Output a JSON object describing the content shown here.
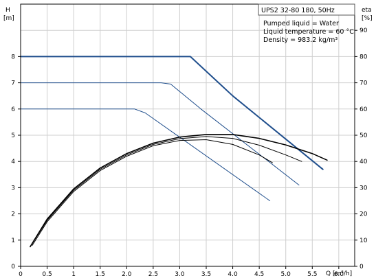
{
  "chart_data": {
    "type": "line",
    "title": "UPS2 32-80 180, 50Hz",
    "info_lines": [
      "Pumped liquid = Water",
      "Liquid temperature = 60 °C",
      "Density = 983.2 kg/m³"
    ],
    "x_axis": {
      "label": "Q [m³/h]",
      "range": [
        0,
        6.3
      ],
      "ticks": [
        {
          "value": 0,
          "label": "0"
        },
        {
          "value": 0.5,
          "label": "0.5"
        },
        {
          "value": 1.0,
          "label": "1"
        },
        {
          "value": 1.5,
          "label": "1.5"
        },
        {
          "value": 2.0,
          "label": "2.0"
        },
        {
          "value": 2.5,
          "label": "2.5"
        },
        {
          "value": 3.0,
          "label": "3.0"
        },
        {
          "value": 3.5,
          "label": "3.5"
        },
        {
          "value": 4.0,
          "label": "4.0"
        },
        {
          "value": 4.5,
          "label": "4.5"
        },
        {
          "value": 5.0,
          "label": "5.0"
        },
        {
          "value": 5.5,
          "label": "5.5"
        },
        {
          "value": 6.0,
          "label": "6.0"
        }
      ]
    },
    "y_left": {
      "label_top": "H",
      "label_unit": "[m]",
      "range": [
        0,
        10
      ],
      "ticks": [
        "0",
        "1",
        "2",
        "3",
        "4",
        "5",
        "6",
        "7",
        "8"
      ]
    },
    "y_right": {
      "label_top": "eta",
      "label_unit": "[%]",
      "range": [
        0,
        100
      ],
      "ticks": [
        "0",
        "10",
        "20",
        "30",
        "40",
        "50",
        "60",
        "70",
        "80",
        "90"
      ]
    },
    "grid": true,
    "series": [
      {
        "axis": "left",
        "color": "#1f4e8c",
        "width": 2,
        "points": [
          [
            0,
            8
          ],
          [
            3.2,
            8
          ],
          [
            4.0,
            6.5
          ],
          [
            5.7,
            3.7
          ]
        ]
      },
      {
        "axis": "left",
        "color": "#1f4e8c",
        "width": 1,
        "points": [
          [
            0,
            7
          ],
          [
            2.65,
            7
          ],
          [
            2.83,
            6.95
          ],
          [
            3.4,
            6.0
          ],
          [
            5.25,
            3.1
          ]
        ]
      },
      {
        "axis": "left",
        "color": "#1f4e8c",
        "width": 1,
        "points": [
          [
            0,
            6
          ],
          [
            2.15,
            6
          ],
          [
            2.35,
            5.85
          ],
          [
            4.7,
            2.5
          ]
        ]
      },
      {
        "axis": "right",
        "color": "#000000",
        "width": 1.6,
        "points": [
          [
            0.18,
            7.5
          ],
          [
            0.5,
            18
          ],
          [
            1.0,
            29.5
          ],
          [
            1.5,
            37.5
          ],
          [
            2.0,
            43
          ],
          [
            2.5,
            47
          ],
          [
            3.0,
            49.3
          ],
          [
            3.5,
            50.3
          ],
          [
            4.0,
            50.3
          ],
          [
            4.5,
            48.8
          ],
          [
            5.0,
            46.3
          ],
          [
            5.5,
            43
          ],
          [
            5.78,
            40.5
          ]
        ]
      },
      {
        "axis": "right",
        "color": "#000000",
        "width": 1,
        "points": [
          [
            0.2,
            8
          ],
          [
            0.5,
            17.5
          ],
          [
            1.0,
            29
          ],
          [
            1.5,
            37
          ],
          [
            2.0,
            42.5
          ],
          [
            2.5,
            46.5
          ],
          [
            3.0,
            48.7
          ],
          [
            3.5,
            49.5
          ],
          [
            4.0,
            48.8
          ],
          [
            4.5,
            46.2
          ],
          [
            5.0,
            42.5
          ],
          [
            5.3,
            40
          ]
        ]
      },
      {
        "axis": "right",
        "color": "#000000",
        "width": 1,
        "points": [
          [
            0.22,
            8
          ],
          [
            0.5,
            17
          ],
          [
            1.0,
            28.5
          ],
          [
            1.5,
            36.5
          ],
          [
            2.0,
            42
          ],
          [
            2.5,
            46
          ],
          [
            3.0,
            48
          ],
          [
            3.5,
            48.3
          ],
          [
            4.0,
            46.5
          ],
          [
            4.5,
            42.5
          ],
          [
            4.75,
            39.5
          ]
        ]
      }
    ]
  }
}
